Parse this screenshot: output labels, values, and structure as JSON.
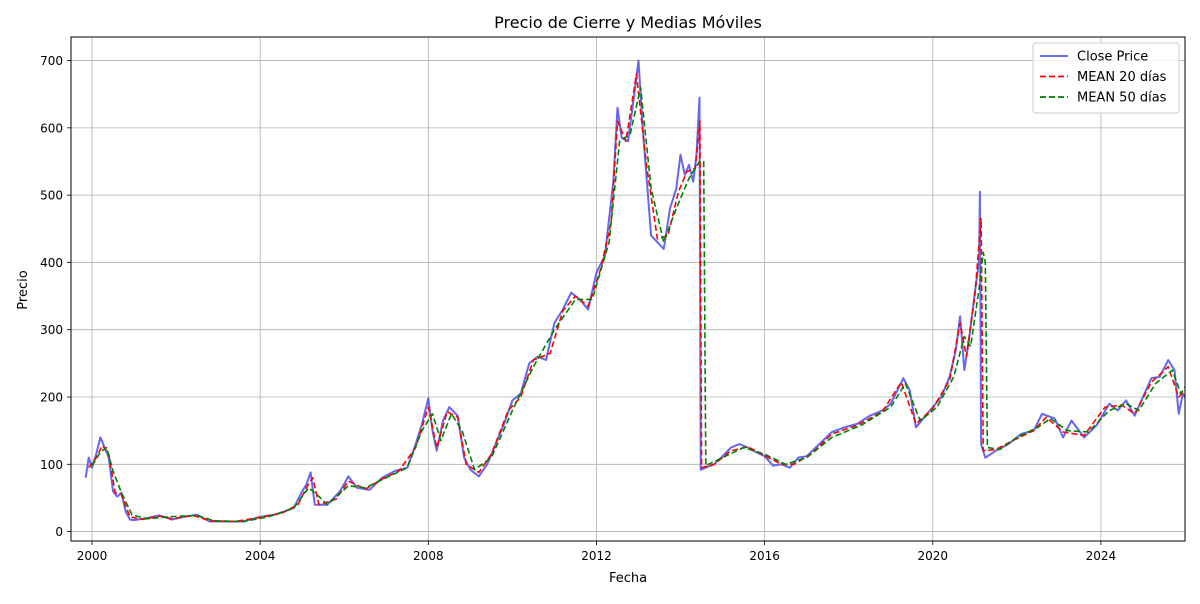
{
  "chart_data": {
    "type": "line",
    "title": "Precio de Cierre y Medias Móviles",
    "xlabel": "Fecha",
    "ylabel": "Precio",
    "xlim": [
      1999.5,
      2026.0
    ],
    "ylim": [
      -14,
      735
    ],
    "x_ticks": [
      2000,
      2004,
      2008,
      2012,
      2016,
      2020,
      2024
    ],
    "x_tick_labels": [
      "2000",
      "2004",
      "2008",
      "2012",
      "2016",
      "2020",
      "2024"
    ],
    "y_ticks": [
      0,
      100,
      200,
      300,
      400,
      500,
      600,
      700
    ],
    "y_tick_labels": [
      "0",
      "100",
      "200",
      "300",
      "400",
      "500",
      "600",
      "700"
    ],
    "grid": true,
    "legend_position": "top-right",
    "series": [
      {
        "name": "Close Price",
        "color": "#5555ee",
        "style": "solid",
        "points": [
          [
            1999.85,
            80
          ],
          [
            1999.92,
            110
          ],
          [
            2000.0,
            95
          ],
          [
            2000.1,
            115
          ],
          [
            2000.2,
            140
          ],
          [
            2000.3,
            125
          ],
          [
            2000.4,
            110
          ],
          [
            2000.5,
            60
          ],
          [
            2000.6,
            52
          ],
          [
            2000.7,
            58
          ],
          [
            2000.8,
            30
          ],
          [
            2000.9,
            18
          ],
          [
            2001.0,
            17
          ],
          [
            2001.3,
            20
          ],
          [
            2001.6,
            24
          ],
          [
            2001.9,
            18
          ],
          [
            2002.2,
            22
          ],
          [
            2002.5,
            25
          ],
          [
            2002.8,
            15
          ],
          [
            2003.2,
            15
          ],
          [
            2003.6,
            15
          ],
          [
            2004.0,
            22
          ],
          [
            2004.4,
            26
          ],
          [
            2004.8,
            35
          ],
          [
            2005.0,
            60
          ],
          [
            2005.1,
            70
          ],
          [
            2005.2,
            88
          ],
          [
            2005.3,
            40
          ],
          [
            2005.6,
            40
          ],
          [
            2005.9,
            60
          ],
          [
            2006.1,
            82
          ],
          [
            2006.3,
            65
          ],
          [
            2006.6,
            62
          ],
          [
            2006.9,
            80
          ],
          [
            2007.2,
            90
          ],
          [
            2007.5,
            95
          ],
          [
            2007.7,
            130
          ],
          [
            2007.85,
            160
          ],
          [
            2008.0,
            198
          ],
          [
            2008.1,
            150
          ],
          [
            2008.2,
            120
          ],
          [
            2008.35,
            165
          ],
          [
            2008.5,
            185
          ],
          [
            2008.7,
            172
          ],
          [
            2008.85,
            110
          ],
          [
            2009.0,
            92
          ],
          [
            2009.2,
            82
          ],
          [
            2009.4,
            100
          ],
          [
            2009.6,
            130
          ],
          [
            2009.8,
            160
          ],
          [
            2010.0,
            195
          ],
          [
            2010.2,
            205
          ],
          [
            2010.4,
            250
          ],
          [
            2010.6,
            260
          ],
          [
            2010.8,
            255
          ],
          [
            2011.0,
            310
          ],
          [
            2011.2,
            330
          ],
          [
            2011.4,
            355
          ],
          [
            2011.6,
            345
          ],
          [
            2011.8,
            330
          ],
          [
            2012.0,
            385
          ],
          [
            2012.2,
            410
          ],
          [
            2012.4,
            520
          ],
          [
            2012.5,
            630
          ],
          [
            2012.6,
            585
          ],
          [
            2012.75,
            580
          ],
          [
            2012.9,
            650
          ],
          [
            2013.0,
            700
          ],
          [
            2013.1,
            600
          ],
          [
            2013.2,
            520
          ],
          [
            2013.3,
            440
          ],
          [
            2013.45,
            430
          ],
          [
            2013.6,
            420
          ],
          [
            2013.75,
            480
          ],
          [
            2013.9,
            510
          ],
          [
            2014.0,
            560
          ],
          [
            2014.1,
            530
          ],
          [
            2014.2,
            545
          ],
          [
            2014.3,
            520
          ],
          [
            2014.38,
            560
          ],
          [
            2014.45,
            645
          ],
          [
            2014.48,
            92
          ],
          [
            2014.6,
            95
          ],
          [
            2014.8,
            100
          ],
          [
            2015.0,
            112
          ],
          [
            2015.2,
            125
          ],
          [
            2015.4,
            130
          ],
          [
            2015.6,
            125
          ],
          [
            2015.8,
            118
          ],
          [
            2016.0,
            112
          ],
          [
            2016.2,
            98
          ],
          [
            2016.4,
            100
          ],
          [
            2016.6,
            95
          ],
          [
            2016.8,
            110
          ],
          [
            2017.0,
            112
          ],
          [
            2017.3,
            130
          ],
          [
            2017.6,
            148
          ],
          [
            2017.9,
            155
          ],
          [
            2018.2,
            160
          ],
          [
            2018.5,
            172
          ],
          [
            2018.8,
            180
          ],
          [
            2019.0,
            190
          ],
          [
            2019.2,
            215
          ],
          [
            2019.3,
            228
          ],
          [
            2019.45,
            210
          ],
          [
            2019.6,
            155
          ],
          [
            2019.8,
            170
          ],
          [
            2020.0,
            185
          ],
          [
            2020.2,
            200
          ],
          [
            2020.4,
            230
          ],
          [
            2020.55,
            270
          ],
          [
            2020.65,
            320
          ],
          [
            2020.75,
            240
          ],
          [
            2020.85,
            280
          ],
          [
            2021.0,
            355
          ],
          [
            2021.1,
            400
          ],
          [
            2021.12,
            505
          ],
          [
            2021.15,
            130
          ],
          [
            2021.25,
            110
          ],
          [
            2021.5,
            120
          ],
          [
            2021.8,
            130
          ],
          [
            2022.1,
            145
          ],
          [
            2022.4,
            150
          ],
          [
            2022.6,
            175
          ],
          [
            2022.9,
            168
          ],
          [
            2023.1,
            140
          ],
          [
            2023.3,
            165
          ],
          [
            2023.6,
            140
          ],
          [
            2023.9,
            158
          ],
          [
            2024.2,
            190
          ],
          [
            2024.4,
            180
          ],
          [
            2024.6,
            195
          ],
          [
            2024.8,
            172
          ],
          [
            2025.0,
            200
          ],
          [
            2025.2,
            228
          ],
          [
            2025.4,
            230
          ],
          [
            2025.6,
            255
          ],
          [
            2025.75,
            240
          ],
          [
            2025.85,
            175
          ],
          [
            2025.95,
            205
          ],
          [
            2026.0,
            200
          ]
        ]
      },
      {
        "name": "MEAN 20 días",
        "color": "#ff0000",
        "style": "dashed",
        "points": [
          [
            1999.92,
            95
          ],
          [
            2000.1,
            110
          ],
          [
            2000.25,
            128
          ],
          [
            2000.4,
            115
          ],
          [
            2000.55,
            58
          ],
          [
            2000.7,
            55
          ],
          [
            2000.9,
            22
          ],
          [
            2001.2,
            18
          ],
          [
            2001.6,
            23
          ],
          [
            2001.9,
            19
          ],
          [
            2002.4,
            24
          ],
          [
            2002.8,
            16
          ],
          [
            2003.4,
            15
          ],
          [
            2004.0,
            21
          ],
          [
            2004.5,
            27
          ],
          [
            2004.9,
            40
          ],
          [
            2005.1,
            65
          ],
          [
            2005.25,
            80
          ],
          [
            2005.4,
            40
          ],
          [
            2005.8,
            48
          ],
          [
            2006.1,
            75
          ],
          [
            2006.5,
            63
          ],
          [
            2006.9,
            78
          ],
          [
            2007.3,
            90
          ],
          [
            2007.7,
            125
          ],
          [
            2008.0,
            185
          ],
          [
            2008.2,
            125
          ],
          [
            2008.45,
            178
          ],
          [
            2008.7,
            170
          ],
          [
            2008.9,
            100
          ],
          [
            2009.2,
            88
          ],
          [
            2009.5,
            115
          ],
          [
            2009.9,
            180
          ],
          [
            2010.2,
            200
          ],
          [
            2010.5,
            255
          ],
          [
            2010.9,
            265
          ],
          [
            2011.2,
            328
          ],
          [
            2011.5,
            350
          ],
          [
            2011.8,
            335
          ],
          [
            2012.1,
            390
          ],
          [
            2012.35,
            460
          ],
          [
            2012.5,
            610
          ],
          [
            2012.7,
            580
          ],
          [
            2012.95,
            680
          ],
          [
            2013.2,
            540
          ],
          [
            2013.45,
            435
          ],
          [
            2013.7,
            440
          ],
          [
            2013.95,
            505
          ],
          [
            2014.15,
            535
          ],
          [
            2014.35,
            540
          ],
          [
            2014.46,
            610
          ],
          [
            2014.5,
            95
          ],
          [
            2014.8,
            100
          ],
          [
            2015.2,
            120
          ],
          [
            2015.6,
            126
          ],
          [
            2016.0,
            113
          ],
          [
            2016.4,
            100
          ],
          [
            2016.7,
            100
          ],
          [
            2017.1,
            115
          ],
          [
            2017.6,
            145
          ],
          [
            2018.2,
            158
          ],
          [
            2018.8,
            178
          ],
          [
            2019.25,
            222
          ],
          [
            2019.6,
            160
          ],
          [
            2020.0,
            183
          ],
          [
            2020.4,
            225
          ],
          [
            2020.65,
            310
          ],
          [
            2020.8,
            260
          ],
          [
            2021.0,
            350
          ],
          [
            2021.15,
            465
          ],
          [
            2021.2,
            120
          ],
          [
            2021.5,
            122
          ],
          [
            2021.9,
            135
          ],
          [
            2022.4,
            150
          ],
          [
            2022.7,
            170
          ],
          [
            2023.1,
            148
          ],
          [
            2023.6,
            143
          ],
          [
            2024.1,
            185
          ],
          [
            2024.5,
            188
          ],
          [
            2024.8,
            175
          ],
          [
            2025.2,
            222
          ],
          [
            2025.6,
            245
          ],
          [
            2025.85,
            200
          ],
          [
            2026.0,
            210
          ]
        ]
      },
      {
        "name": "MEAN 50 días",
        "color": "#008000",
        "style": "dashed",
        "points": [
          [
            2000.0,
            98
          ],
          [
            2000.2,
            118
          ],
          [
            2000.35,
            125
          ],
          [
            2000.5,
            90
          ],
          [
            2000.7,
            58
          ],
          [
            2000.95,
            25
          ],
          [
            2001.3,
            19
          ],
          [
            2001.8,
            22
          ],
          [
            2002.5,
            24
          ],
          [
            2002.9,
            16
          ],
          [
            2003.6,
            15
          ],
          [
            2004.2,
            22
          ],
          [
            2004.8,
            35
          ],
          [
            2005.15,
            65
          ],
          [
            2005.35,
            55
          ],
          [
            2005.6,
            40
          ],
          [
            2006.1,
            68
          ],
          [
            2006.5,
            65
          ],
          [
            2007.0,
            80
          ],
          [
            2007.5,
            95
          ],
          [
            2007.85,
            150
          ],
          [
            2008.1,
            175
          ],
          [
            2008.3,
            135
          ],
          [
            2008.55,
            175
          ],
          [
            2008.8,
            150
          ],
          [
            2009.1,
            92
          ],
          [
            2009.5,
            110
          ],
          [
            2010.0,
            180
          ],
          [
            2010.5,
            245
          ],
          [
            2011.0,
            300
          ],
          [
            2011.5,
            345
          ],
          [
            2011.9,
            345
          ],
          [
            2012.3,
            430
          ],
          [
            2012.55,
            580
          ],
          [
            2012.8,
            590
          ],
          [
            2013.05,
            660
          ],
          [
            2013.3,
            510
          ],
          [
            2013.6,
            430
          ],
          [
            2013.9,
            480
          ],
          [
            2014.2,
            525
          ],
          [
            2014.45,
            550
          ],
          [
            2014.55,
            550
          ],
          [
            2014.6,
            98
          ],
          [
            2015.0,
            110
          ],
          [
            2015.5,
            125
          ],
          [
            2016.0,
            115
          ],
          [
            2016.5,
            100
          ],
          [
            2017.0,
            110
          ],
          [
            2017.6,
            140
          ],
          [
            2018.3,
            158
          ],
          [
            2019.0,
            185
          ],
          [
            2019.35,
            220
          ],
          [
            2019.7,
            165
          ],
          [
            2020.1,
            185
          ],
          [
            2020.5,
            230
          ],
          [
            2020.75,
            290
          ],
          [
            2020.9,
            275
          ],
          [
            2021.1,
            360
          ],
          [
            2021.2,
            415
          ],
          [
            2021.25,
            400
          ],
          [
            2021.3,
            125
          ],
          [
            2021.6,
            122
          ],
          [
            2022.0,
            140
          ],
          [
            2022.5,
            155
          ],
          [
            2022.8,
            168
          ],
          [
            2023.2,
            150
          ],
          [
            2023.7,
            148
          ],
          [
            2024.2,
            180
          ],
          [
            2024.6,
            190
          ],
          [
            2024.9,
            180
          ],
          [
            2025.3,
            220
          ],
          [
            2025.7,
            240
          ],
          [
            2025.9,
            205
          ],
          [
            2026.0,
            215
          ]
        ]
      }
    ]
  }
}
